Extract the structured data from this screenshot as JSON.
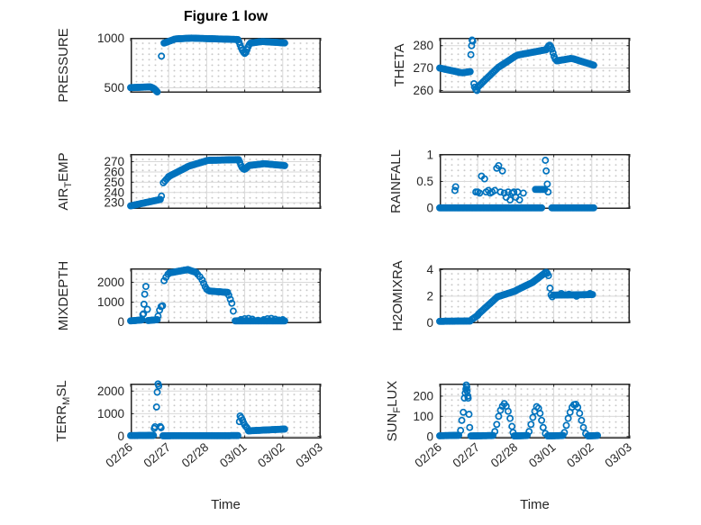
{
  "title": "Figure 1 low",
  "xlabel": "Time",
  "marker_color": "#0072BD",
  "axis_color": "#262626",
  "grid_color": "#d9d9d9",
  "x_axis": {
    "range": [
      0,
      5
    ],
    "tick_labels": [
      "02/26",
      "02/27",
      "02/28",
      "03/01",
      "03/02",
      "03/03"
    ]
  },
  "chart_data": [
    {
      "id": "pressure",
      "type": "scatter",
      "ylabel": {
        "pre": "PRESSURE",
        "sub": "",
        "post": ""
      },
      "ylim": [
        450,
        1005
      ],
      "yticks": [
        500,
        1000
      ],
      "ytick_labels": [
        "500",
        "1000"
      ],
      "ylabel_offset": 70,
      "xticks": false,
      "runs": [
        [
          0,
          0.5,
          502,
          509
        ],
        [
          0.88,
          1.15,
          952,
          990
        ],
        [
          1.2,
          1.6,
          994,
          1002
        ],
        [
          1.65,
          2.82,
          1001,
          988
        ],
        [
          3.15,
          3.45,
          952,
          967
        ],
        [
          3.5,
          4.05,
          967,
          953
        ]
      ],
      "points": [
        [
          0.53,
          507
        ],
        [
          0.56,
          503
        ],
        [
          0.59,
          497
        ],
        [
          0.62,
          490
        ],
        [
          0.64,
          483
        ],
        [
          0.66,
          475
        ],
        [
          0.68,
          466
        ],
        [
          0.7,
          458
        ],
        [
          0.81,
          820
        ],
        [
          2.85,
          962
        ],
        [
          2.88,
          932
        ],
        [
          2.91,
          903
        ],
        [
          2.94,
          878
        ],
        [
          2.97,
          860
        ],
        [
          3.0,
          848
        ],
        [
          3.03,
          858
        ],
        [
          3.06,
          884
        ],
        [
          3.09,
          914
        ],
        [
          3.12,
          938
        ]
      ]
    },
    {
      "id": "theta",
      "type": "scatter",
      "ylabel": {
        "pre": "THETA",
        "sub": "",
        "post": ""
      },
      "ylim": [
        259,
        283.5
      ],
      "yticks": [
        260,
        270,
        280
      ],
      "ytick_labels": [
        "260",
        "270",
        "280"
      ],
      "ylabel_offset": 40,
      "xticks": false,
      "runs": [
        [
          0,
          0.55,
          270,
          268
        ],
        [
          0.6,
          0.8,
          267.9,
          268.4
        ],
        [
          1,
          1.5,
          261.5,
          269.7
        ],
        [
          1.55,
          2,
          270.4,
          275.4
        ],
        [
          2.05,
          2.8,
          275.8,
          278.2
        ],
        [
          3.08,
          3.45,
          273.2,
          274.3
        ],
        [
          3.5,
          4.05,
          274.2,
          271.3
        ]
      ],
      "points": [
        [
          0.82,
          276
        ],
        [
          0.84,
          280
        ],
        [
          0.85,
          282.5
        ],
        [
          0.87,
          282
        ],
        [
          0.9,
          263
        ],
        [
          0.92,
          261.5
        ],
        [
          0.95,
          260.5
        ],
        [
          0.98,
          260
        ],
        [
          2.83,
          279
        ],
        [
          2.86,
          279.8
        ],
        [
          2.89,
          280.2
        ],
        [
          2.92,
          279.6
        ],
        [
          2.95,
          278.4
        ],
        [
          2.98,
          276.8
        ],
        [
          3.01,
          275.2
        ],
        [
          3.04,
          274
        ]
      ]
    },
    {
      "id": "air_temp",
      "type": "scatter",
      "ylabel": {
        "pre": "AIR",
        "sub": "T",
        "post": "EMP"
      },
      "ylim": [
        224,
        277.5
      ],
      "yticks": [
        230,
        240,
        250,
        260,
        270
      ],
      "ytick_labels": [
        "230",
        "240",
        "250",
        "260",
        "270"
      ],
      "ylabel_offset": 70,
      "xticks": false,
      "runs": [
        [
          0,
          0.78,
          227,
          233.2
        ],
        [
          0.86,
          0.98,
          249.5,
          254.5
        ],
        [
          1,
          1.5,
          255.5,
          265.1
        ],
        [
          1.55,
          2,
          265.9,
          270.9
        ],
        [
          2.05,
          2.84,
          271.3,
          272
        ],
        [
          3.12,
          3.5,
          266.3,
          268
        ],
        [
          3.55,
          4.05,
          267.9,
          266.2
        ]
      ],
      "points": [
        [
          0.81,
          236.5
        ],
        [
          2.87,
          269.5
        ],
        [
          2.9,
          266.5
        ],
        [
          2.93,
          264.5
        ],
        [
          2.96,
          263.2
        ],
        [
          2.99,
          262.6
        ],
        [
          3.02,
          263
        ],
        [
          3.05,
          264
        ],
        [
          3.08,
          265.3
        ]
      ]
    },
    {
      "id": "rainfall",
      "type": "scatter",
      "ylabel": {
        "pre": "RAINFALL",
        "sub": "",
        "post": ""
      },
      "ylim": [
        -0.02,
        1.02
      ],
      "yticks": [
        0,
        0.5,
        1
      ],
      "ytick_labels": [
        "0",
        "0.5",
        "1"
      ],
      "ylabel_offset": 44,
      "xticks": false,
      "runs": [
        [
          0,
          2.68,
          0,
          0
        ],
        [
          2.95,
          4.05,
          0,
          0
        ],
        [
          2.52,
          2.76,
          0.35,
          0.35
        ]
      ],
      "points": [
        [
          0.4,
          0.33
        ],
        [
          0.42,
          0.4
        ],
        [
          0.95,
          0.3
        ],
        [
          1.0,
          0.3
        ],
        [
          1.05,
          0.28
        ],
        [
          1.1,
          0.6
        ],
        [
          1.18,
          0.55
        ],
        [
          1.22,
          0.3
        ],
        [
          1.28,
          0.33
        ],
        [
          1.33,
          0.28
        ],
        [
          1.38,
          0.3
        ],
        [
          1.45,
          0.33
        ],
        [
          1.5,
          0.75
        ],
        [
          1.55,
          0.8
        ],
        [
          1.6,
          0.3
        ],
        [
          1.65,
          0.7
        ],
        [
          1.7,
          0.28
        ],
        [
          1.75,
          0.2
        ],
        [
          1.8,
          0.3
        ],
        [
          1.85,
          0.15
        ],
        [
          1.9,
          0.28
        ],
        [
          1.95,
          0.3
        ],
        [
          2.0,
          0.2
        ],
        [
          2.05,
          0.3
        ],
        [
          2.1,
          0.15
        ],
        [
          2.2,
          0.28
        ],
        [
          2.78,
          0.9
        ],
        [
          2.8,
          0.7
        ],
        [
          2.83,
          0.45
        ],
        [
          2.85,
          0.3
        ]
      ]
    },
    {
      "id": "mixdepth",
      "type": "scatter",
      "ylabel": {
        "pre": "MIXDEPTH",
        "sub": "",
        "post": ""
      },
      "ylim": [
        -60,
        2700
      ],
      "yticks": [
        0,
        1000,
        2000
      ],
      "ytick_labels": [
        "0",
        "1000",
        "2000"
      ],
      "ylabel_offset": 70,
      "xticks": false,
      "runs": [
        [
          0,
          0.3,
          60,
          110
        ],
        [
          0.46,
          0.7,
          80,
          120
        ],
        [
          1.02,
          1.45,
          2470,
          2620
        ],
        [
          1.5,
          1.72,
          2640,
          2500
        ],
        [
          2.08,
          2.55,
          1560,
          1490
        ],
        [
          2.75,
          4.05,
          60,
          60
        ]
      ],
      "points": [
        [
          0.32,
          380
        ],
        [
          0.34,
          420
        ],
        [
          0.35,
          900
        ],
        [
          0.37,
          1400
        ],
        [
          0.4,
          1790
        ],
        [
          0.44,
          640
        ],
        [
          0.72,
          300
        ],
        [
          0.76,
          600
        ],
        [
          0.8,
          780
        ],
        [
          0.84,
          820
        ],
        [
          0.88,
          2080
        ],
        [
          0.93,
          2250
        ],
        [
          0.98,
          2400
        ],
        [
          1.76,
          2400
        ],
        [
          1.82,
          2280
        ],
        [
          1.88,
          2120
        ],
        [
          1.92,
          1950
        ],
        [
          1.96,
          1780
        ],
        [
          2.0,
          1650
        ],
        [
          2.04,
          1590
        ],
        [
          2.58,
          1350
        ],
        [
          2.62,
          1150
        ],
        [
          2.66,
          950
        ],
        [
          2.7,
          550
        ],
        [
          2.9,
          130
        ],
        [
          3.0,
          170
        ],
        [
          3.1,
          185
        ],
        [
          3.2,
          150
        ],
        [
          3.35,
          90
        ],
        [
          3.5,
          120
        ],
        [
          3.6,
          170
        ],
        [
          3.7,
          185
        ],
        [
          3.8,
          150
        ],
        [
          3.9,
          100
        ],
        [
          4.0,
          120
        ]
      ]
    },
    {
      "id": "h2omixra",
      "type": "scatter",
      "ylabel": {
        "pre": "H2OMIXRA",
        "sub": "",
        "post": ""
      },
      "ylim": [
        -0.05,
        4.1
      ],
      "yticks": [
        0,
        2,
        4
      ],
      "ytick_labels": [
        "0",
        "2",
        "4"
      ],
      "ylabel_offset": 42,
      "xticks": false,
      "runs": [
        [
          0,
          0.8,
          0.1,
          0.12
        ],
        [
          0.85,
          1,
          0.25,
          0.55
        ],
        [
          1.02,
          1.5,
          0.65,
          1.9
        ],
        [
          1.52,
          2,
          1.95,
          2.4
        ],
        [
          2.02,
          2.45,
          2.45,
          3.05
        ],
        [
          2.47,
          2.78,
          3.1,
          3.78
        ],
        [
          3,
          4.02,
          2.08,
          2.12
        ]
      ],
      "points": [
        [
          2.8,
          3.8
        ],
        [
          2.83,
          3.72
        ],
        [
          2.86,
          3.55
        ],
        [
          2.9,
          2.6
        ],
        [
          2.93,
          2.1
        ],
        [
          2.96,
          1.95
        ],
        [
          3.2,
          2.2
        ],
        [
          3.4,
          2.15
        ],
        [
          3.6,
          2.0
        ],
        [
          3.8,
          2.1
        ],
        [
          3.95,
          2.2
        ]
      ]
    },
    {
      "id": "terr_msl",
      "type": "scatter",
      "ylabel": {
        "pre": "TERR",
        "sub": "M",
        "post": "SL"
      },
      "ylim": [
        -100,
        2330
      ],
      "yticks": [
        0,
        1000,
        2000
      ],
      "ytick_labels": [
        "0",
        "1000",
        "2000"
      ],
      "ylabel_offset": 72,
      "xticks": true,
      "runs": [
        [
          0,
          0.6,
          30,
          40
        ],
        [
          0.85,
          2.82,
          25,
          30
        ],
        [
          3.1,
          4.05,
          240,
          320
        ]
      ],
      "points": [
        [
          0.62,
          350
        ],
        [
          0.64,
          420
        ],
        [
          0.68,
          1300
        ],
        [
          0.7,
          1950
        ],
        [
          0.72,
          2320
        ],
        [
          0.74,
          2230
        ],
        [
          0.78,
          430
        ],
        [
          0.8,
          380
        ],
        [
          2.86,
          650
        ],
        [
          2.88,
          900
        ],
        [
          2.91,
          820
        ],
        [
          2.94,
          720
        ],
        [
          2.97,
          600
        ],
        [
          3.0,
          500
        ],
        [
          3.03,
          430
        ],
        [
          3.06,
          380
        ]
      ]
    },
    {
      "id": "sun_flux",
      "type": "scatter",
      "ylabel": {
        "pre": "SUN",
        "sub": "F",
        "post": "LUX"
      },
      "ylim": [
        -10,
        262
      ],
      "yticks": [
        0,
        100,
        200
      ],
      "ytick_labels": [
        "0",
        "100",
        "200"
      ],
      "ylabel_offset": 48,
      "xticks": true,
      "runs": [
        [
          0,
          0.5,
          4,
          6
        ],
        [
          0.82,
          1.4,
          3,
          5
        ],
        [
          1.96,
          2.3,
          3,
          5
        ],
        [
          2.84,
          3.24,
          3,
          5
        ],
        [
          3.9,
          4.15,
          3,
          5
        ]
      ],
      "points": [
        [
          0.55,
          30
        ],
        [
          0.58,
          80
        ],
        [
          0.62,
          120
        ],
        [
          0.65,
          190
        ],
        [
          0.67,
          215
        ],
        [
          0.69,
          235
        ],
        [
          0.7,
          255
        ],
        [
          0.71,
          245
        ],
        [
          0.72,
          225
        ],
        [
          0.74,
          200
        ],
        [
          0.75,
          190
        ],
        [
          0.77,
          110
        ],
        [
          0.79,
          45
        ],
        [
          1.45,
          25
        ],
        [
          1.5,
          60
        ],
        [
          1.55,
          100
        ],
        [
          1.6,
          130
        ],
        [
          1.65,
          150
        ],
        [
          1.7,
          163
        ],
        [
          1.75,
          150
        ],
        [
          1.8,
          125
        ],
        [
          1.85,
          90
        ],
        [
          1.9,
          50
        ],
        [
          1.93,
          20
        ],
        [
          2.35,
          25
        ],
        [
          2.4,
          60
        ],
        [
          2.45,
          95
        ],
        [
          2.5,
          125
        ],
        [
          2.55,
          148
        ],
        [
          2.6,
          140
        ],
        [
          2.64,
          115
        ],
        [
          2.68,
          80
        ],
        [
          2.72,
          45
        ],
        [
          2.78,
          15
        ],
        [
          3.28,
          20
        ],
        [
          3.33,
          55
        ],
        [
          3.38,
          90
        ],
        [
          3.43,
          120
        ],
        [
          3.48,
          145
        ],
        [
          3.53,
          158
        ],
        [
          3.58,
          160
        ],
        [
          3.63,
          145
        ],
        [
          3.68,
          115
        ],
        [
          3.73,
          80
        ],
        [
          3.78,
          45
        ],
        [
          3.84,
          15
        ]
      ]
    }
  ]
}
